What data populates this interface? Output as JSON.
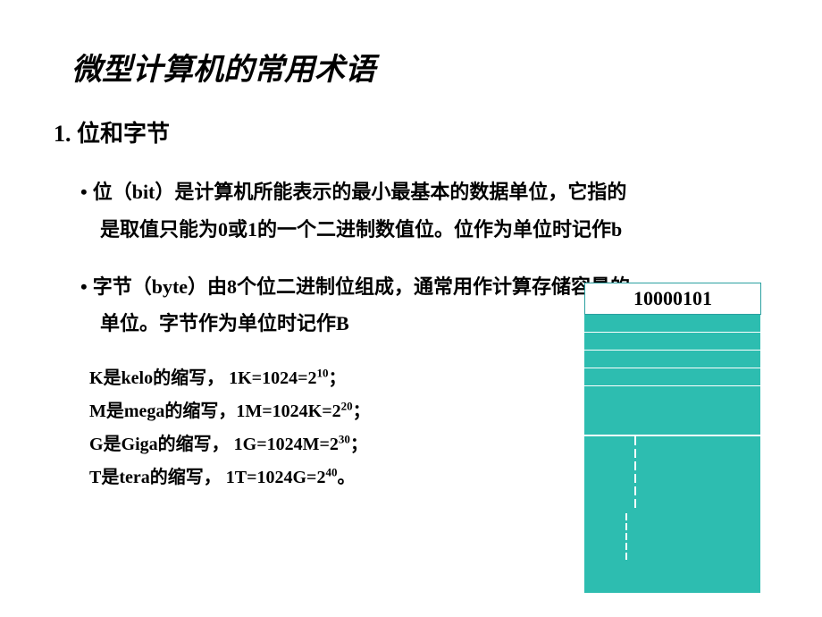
{
  "title": "微型计算机的常用术语",
  "section": "1.  位和字节",
  "bullet1_line1": "位（bit）是计算机所能表示的最小最基本的数据单位，它指的",
  "bullet1_line2": "是取值只能为0或1的一个二进制数值位。位作为单位时记作b",
  "bullet2_line1": "字节（byte）由8个位二进制位组成，通常用作计算存储容量的",
  "bullet2_line2": "单位。字节作为单位时记作B",
  "units": {
    "k_pre": "K是kelo的缩写，   1K=1024=2",
    "k_exp": "10",
    "k_post": "；",
    "m_pre": "M是mega的缩写，1M=1024K=2",
    "m_exp": "20",
    "m_post": "；",
    "g_pre": "G是Giga的缩写， 1G=1024M=2",
    "g_exp": "30",
    "g_post": "；",
    "t_pre": "T是tera的缩写，   1T=1024G=2",
    "t_exp": "40",
    "t_post": "。"
  },
  "byte_header": "10000101",
  "colors": {
    "teal": "#2dbdb0",
    "teal_border": "#2aa0a0",
    "bg": "#ffffff",
    "text": "#000000"
  }
}
